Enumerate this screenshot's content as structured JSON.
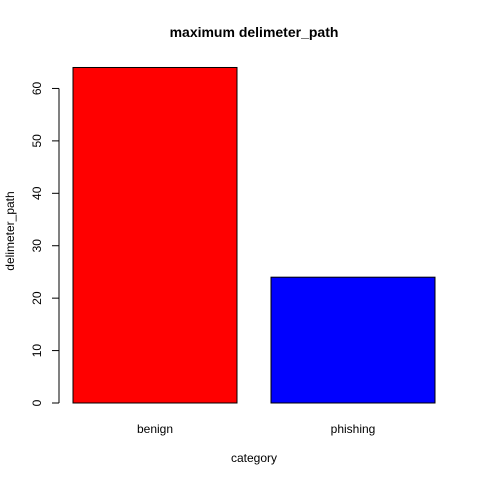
{
  "chart_data": {
    "type": "bar",
    "title": "maximum delimeter_path",
    "xlabel": "category",
    "ylabel": "delimeter_path",
    "categories": [
      "benign",
      "phishing"
    ],
    "values": [
      64,
      24
    ],
    "colors": [
      "#ff0000",
      "#0000ff"
    ],
    "ylim": [
      0,
      66
    ],
    "yticks": [
      0,
      10,
      20,
      30,
      40,
      50,
      60
    ],
    "grid": false,
    "legend": "none"
  }
}
